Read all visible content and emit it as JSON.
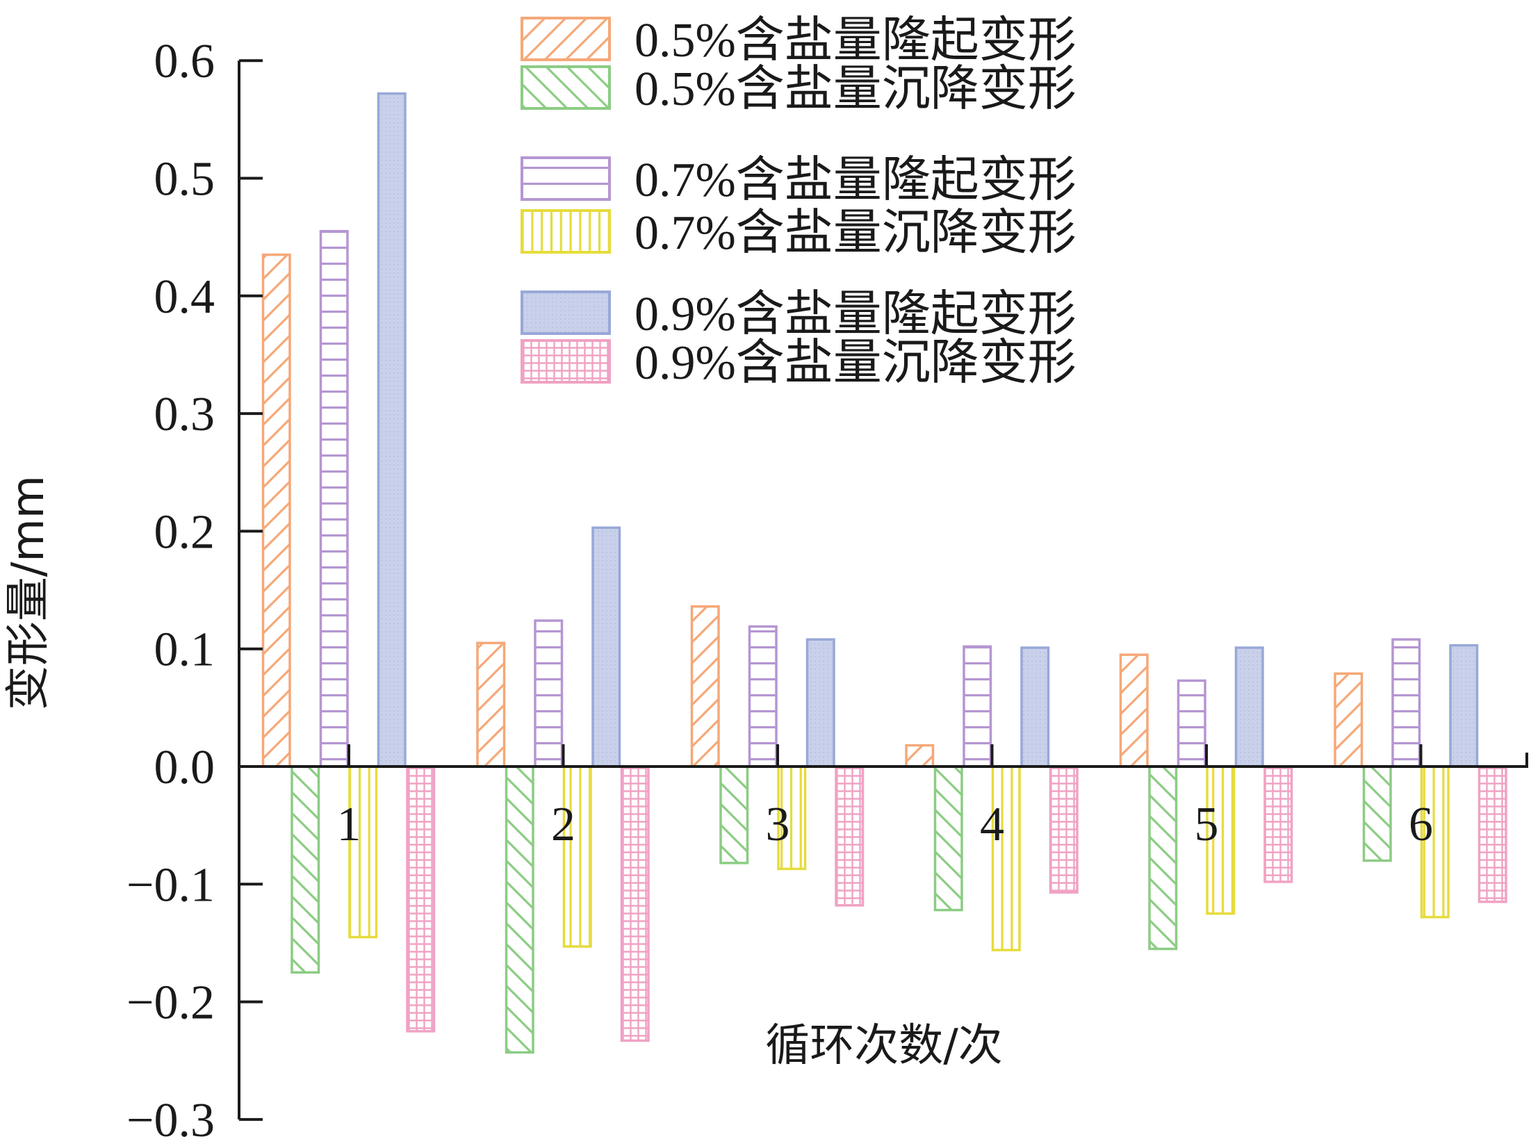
{
  "chart_data": {
    "type": "bar",
    "categories": [
      "1",
      "2",
      "3",
      "4",
      "5",
      "6"
    ],
    "xlabel": "循环次数/次",
    "ylabel": "变形量/mm",
    "ylim": [
      -0.3,
      0.6
    ],
    "yticks": [
      "0.6",
      "0.5",
      "0.4",
      "0.3",
      "0.2",
      "0.1",
      "0.0",
      "−0.1",
      "−0.2",
      "−0.3"
    ],
    "ytick_values": [
      0.6,
      0.5,
      0.4,
      0.3,
      0.2,
      0.1,
      0.0,
      -0.1,
      -0.2,
      -0.3
    ],
    "grid": false,
    "legend_position": "top-right",
    "series": [
      {
        "name": "0.5%含盐量隆起变形",
        "color": "#f5a878",
        "pattern": "diagonal-forward",
        "values": [
          0.435,
          0.105,
          0.136,
          0.018,
          0.095,
          0.079
        ]
      },
      {
        "name": "0.5%含盐量沉降变形",
        "color": "#8ccc84",
        "pattern": "diagonal-back",
        "values": [
          -0.175,
          -0.243,
          -0.082,
          -0.122,
          -0.155,
          -0.08
        ]
      },
      {
        "name": "0.7%含盐量隆起变形",
        "color": "#b596d2",
        "pattern": "horizontal",
        "values": [
          0.455,
          0.124,
          0.119,
          0.102,
          0.073,
          0.108
        ]
      },
      {
        "name": "0.7%含盐量沉降变形",
        "color": "#e6dc3c",
        "pattern": "vertical",
        "values": [
          -0.145,
          -0.153,
          -0.087,
          -0.156,
          -0.125,
          -0.128
        ]
      },
      {
        "name": "0.9%含盐量隆起变形",
        "color": "#98a8d8",
        "pattern": "solid",
        "values": [
          0.572,
          0.203,
          0.108,
          0.101,
          0.101,
          0.103
        ]
      },
      {
        "name": "0.9%含盐量沉降变形",
        "color": "#f0a2c4",
        "pattern": "grid",
        "values": [
          -0.225,
          -0.233,
          -0.118,
          -0.107,
          -0.098,
          -0.115
        ]
      }
    ]
  }
}
